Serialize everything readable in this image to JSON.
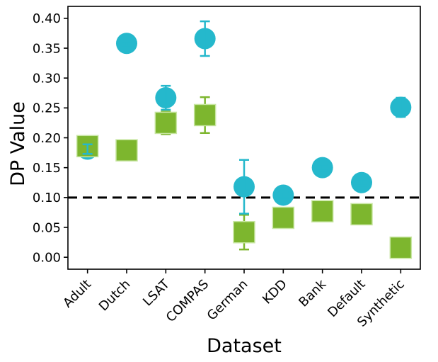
{
  "chart_data": {
    "type": "scatter",
    "title": "",
    "xlabel": "Dataset",
    "ylabel": "DP Value",
    "categories": [
      "Adult",
      "Dutch",
      "LSAT",
      "COMPAS",
      "German",
      "KDD",
      "Bank",
      "Default",
      "Synthetic"
    ],
    "y_ticks": [
      "0.00",
      "0.05",
      "0.10",
      "0.15",
      "0.20",
      "0.25",
      "0.30",
      "0.35",
      "0.40"
    ],
    "ylim": [
      -0.02,
      0.42
    ],
    "grid": false,
    "legend_position": "none",
    "reference_line": {
      "value": 0.1,
      "style": "dashed",
      "color": "#000000"
    },
    "series": [
      {
        "name": "cyan-circles",
        "marker": "circle",
        "color": "#25b8cc",
        "values": [
          0.181,
          0.358,
          0.267,
          0.366,
          0.118,
          0.104,
          0.15,
          0.125,
          0.251
        ],
        "errors": [
          0.008,
          0.004,
          0.02,
          0.029,
          0.045,
          0.005,
          0.005,
          0.005,
          0.016
        ]
      },
      {
        "name": "green-squares",
        "marker": "square",
        "color": "#7db62e",
        "edge_color": "#c8e6a2",
        "values": [
          0.186,
          0.179,
          0.225,
          0.238,
          0.042,
          0.066,
          0.077,
          0.072,
          0.016
        ],
        "errors": [
          0.006,
          0.004,
          0.019,
          0.03,
          0.029,
          0.005,
          0.005,
          0.005,
          0.004
        ]
      }
    ]
  }
}
